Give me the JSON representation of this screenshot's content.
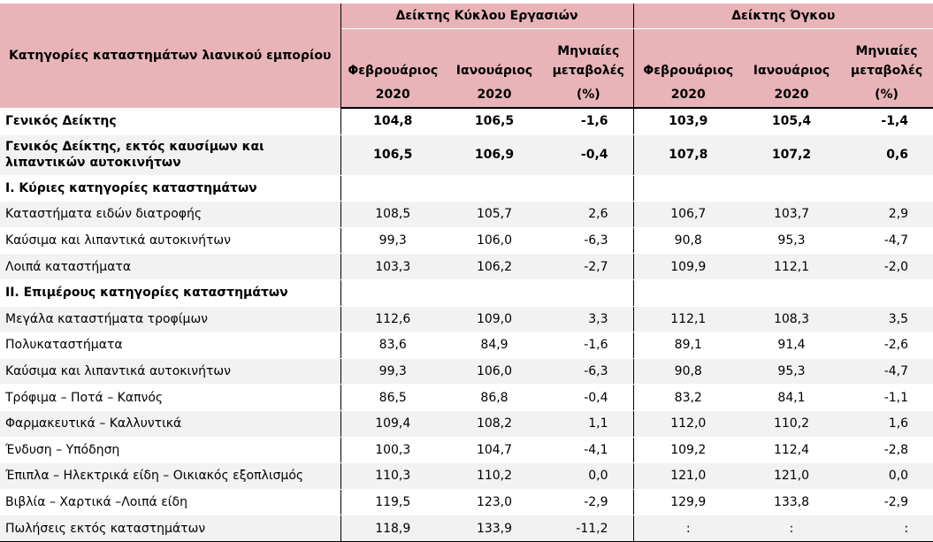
{
  "header": {
    "category_label": "Κατηγορίες καταστημάτων λιανικού εμπορίου",
    "group1": "Δείκτης Κύκλου Εργασιών",
    "group2": "Δείκτης Όγκου",
    "month1": "Φεβρουάριος",
    "month2": "Ιανουάριος",
    "change_line1": "Μηνιαίες",
    "change_line2": "μεταβολές",
    "year": "2020",
    "pct": "(%)"
  },
  "rows": [
    {
      "label": "Γενικός Δείκτης",
      "bold": true,
      "v": [
        "104,8",
        "106,5",
        "-1,6",
        "103,9",
        "105,4",
        "-1,4"
      ]
    },
    {
      "label": "Γενικός Δείκτης, εκτός καυσίμων και λιπαντικών αυτοκινήτων",
      "bold": true,
      "tall": true,
      "v": [
        "106,5",
        "106,9",
        "-0,4",
        "107,8",
        "107,2",
        "0,6"
      ]
    },
    {
      "label": "I. Κύριες κατηγορίες καταστημάτων",
      "bold": true,
      "v": [
        "",
        "",
        "",
        "",
        "",
        ""
      ]
    },
    {
      "label": "Καταστήματα ειδών διατροφής",
      "v": [
        "108,5",
        "105,7",
        "2,6",
        "106,7",
        "103,7",
        "2,9"
      ]
    },
    {
      "label": "Καύσιμα και λιπαντικά αυτοκινήτων",
      "v": [
        "99,3",
        "106,0",
        "-6,3",
        "90,8",
        "95,3",
        "-4,7"
      ]
    },
    {
      "label": "Λοιπά καταστήματα",
      "v": [
        "103,3",
        "106,2",
        "-2,7",
        "109,9",
        "112,1",
        "-2,0"
      ]
    },
    {
      "label": "II. Επιμέρους κατηγορίες καταστημάτων",
      "bold": true,
      "v": [
        "",
        "",
        "",
        "",
        "",
        ""
      ]
    },
    {
      "label": "Μεγάλα καταστήματα τροφίμων",
      "v": [
        "112,6",
        "109,0",
        "3,3",
        "112,1",
        "108,3",
        "3,5"
      ]
    },
    {
      "label": "Πολυκαταστήματα",
      "v": [
        "83,6",
        "84,9",
        "-1,6",
        "89,1",
        "91,4",
        "-2,6"
      ]
    },
    {
      "label": "Καύσιμα και λιπαντικά αυτοκινήτων",
      "v": [
        "99,3",
        "106,0",
        "-6,3",
        "90,8",
        "95,3",
        "-4,7"
      ]
    },
    {
      "label": "Τρόφιμα – Ποτά – Καπνός",
      "v": [
        "86,5",
        "86,8",
        "-0,4",
        "83,2",
        "84,1",
        "-1,1"
      ]
    },
    {
      "label": "Φαρμακευτικά – Καλλυντικά",
      "v": [
        "109,4",
        "108,2",
        "1,1",
        "112,0",
        "110,2",
        "1,6"
      ]
    },
    {
      "label": "Ένδυση – Υπόδηση",
      "v": [
        "100,3",
        "104,7",
        "-4,1",
        "109,2",
        "112,4",
        "-2,8"
      ]
    },
    {
      "label": "Έπιπλα – Ηλεκτρικά είδη – Οικιακός εξοπλισμός",
      "v": [
        "110,3",
        "110,2",
        "0,0",
        "121,0",
        "121,0",
        "0,0"
      ]
    },
    {
      "label": "Βιβλία – Χαρτικά –Λοιπά είδη",
      "v": [
        "119,5",
        "123,0",
        "-2,9",
        "129,9",
        "133,8",
        "-2,9"
      ]
    },
    {
      "label": "Πωλήσεις εκτός καταστημάτων",
      "v": [
        "118,9",
        "133,9",
        "-11,2",
        ":",
        ":",
        ":"
      ]
    }
  ]
}
